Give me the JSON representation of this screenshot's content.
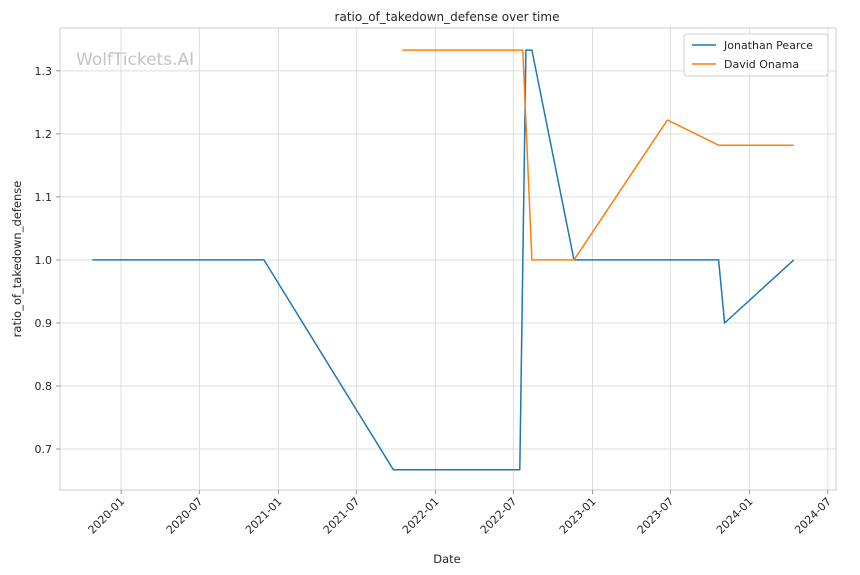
{
  "chart_data": {
    "type": "line",
    "title": "ratio_of_takedown_defense over time",
    "xlabel": "Date",
    "ylabel": "ratio_of_takedown_defense",
    "watermark": "WolfTickets.AI",
    "xlim": [
      "2019-08-12",
      "2024-07-20"
    ],
    "ylim": [
      0.635,
      1.368
    ],
    "x_ticks": [
      "2020-01-01",
      "2020-07-01",
      "2021-01-01",
      "2021-07-01",
      "2022-01-01",
      "2022-07-01",
      "2023-01-01",
      "2023-07-01",
      "2024-01-01",
      "2024-07-01"
    ],
    "x_tick_labels": [
      "2020-01",
      "2020-07",
      "2021-01",
      "2021-07",
      "2022-01",
      "2022-07",
      "2023-01",
      "2023-07",
      "2024-01",
      "2024-07"
    ],
    "y_ticks": [
      0.7,
      0.8,
      0.9,
      1.0,
      1.1,
      1.2,
      1.3
    ],
    "y_tick_labels": [
      "0.7",
      "0.8",
      "0.9",
      "1.0",
      "1.1",
      "1.2",
      "1.3"
    ],
    "grid": true,
    "legend_position": "top-right",
    "series": [
      {
        "name": "Jonathan Pearce",
        "color": "#1f77b4",
        "x": [
          "2019-10-26",
          "2020-11-28",
          "2021-09-25",
          "2022-07-16",
          "2022-07-30",
          "2022-08-13",
          "2022-11-19",
          "2023-10-21",
          "2023-11-04",
          "2024-04-13"
        ],
        "y": [
          1.0,
          1.0,
          0.667,
          0.667,
          1.333,
          1.333,
          1.0,
          1.0,
          0.9,
          1.0
        ]
      },
      {
        "name": "David Onama",
        "color": "#ff7f0e",
        "x": [
          "2021-10-16",
          "2022-07-23",
          "2022-08-13",
          "2022-11-19",
          "2023-06-24",
          "2023-10-21",
          "2024-04-13"
        ],
        "y": [
          1.333,
          1.333,
          1.0,
          1.0,
          1.222,
          1.182,
          1.182
        ]
      }
    ]
  }
}
